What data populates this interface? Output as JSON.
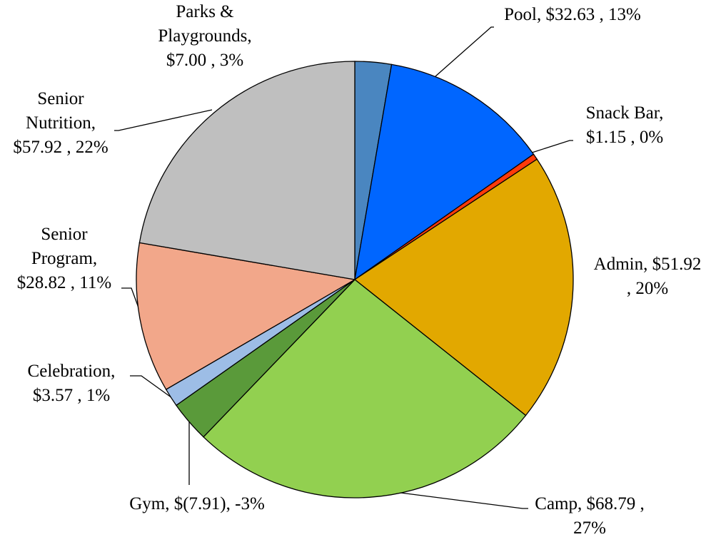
{
  "chart_data": {
    "type": "pie",
    "values": [
      7.0,
      32.63,
      1.15,
      51.92,
      68.79,
      -7.91,
      3.57,
      28.82,
      57.92
    ],
    "value_labels": [
      "Parks & Playgrounds, $7.00 , 3%",
      "Pool, $32.63 , 13%",
      "Snack Bar, $1.15 , 0%",
      "Admin, $51.92 , 20%",
      "Camp, $68.79 , 27%",
      "Gym, $(7.91), -3%",
      "Celebration, $3.57 , 1%",
      "Senior Program, $28.82 , 11%",
      "Senior Nutrition, $57.92 , 22%"
    ],
    "colors": [
      "#4a86c0",
      "#0066ff",
      "#ff3a0a",
      "#e2a800",
      "#92d050",
      "#5a9a3a",
      "#9dbde6",
      "#f2a78a",
      "#bfbfbf"
    ]
  }
}
